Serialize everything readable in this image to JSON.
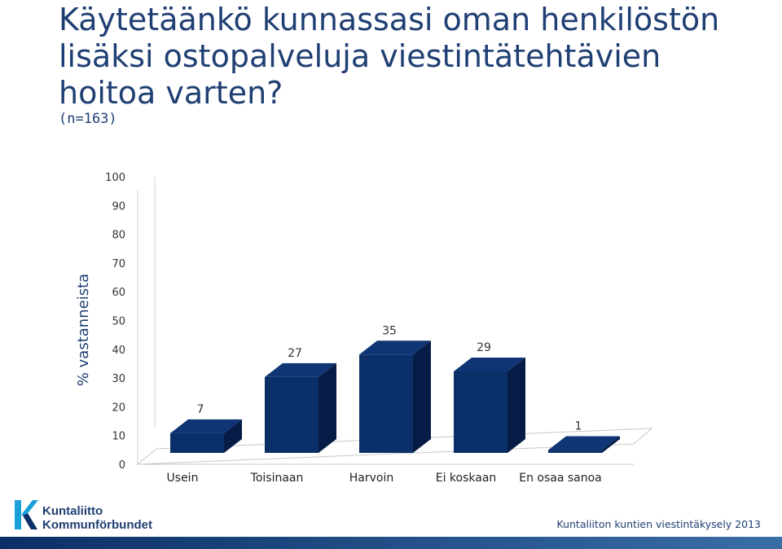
{
  "slide": {
    "title": "Käytetäänkö kunnassasi oman henkilöstön lisäksi ostopalveluja viestintätehtävien hoitoa varten?",
    "subtitle": "(n=163)",
    "footer_source": "Kuntaliiton kuntien viestintäkysely 2013",
    "logo": {
      "line1": "Kuntaliitto",
      "line2": "Kommunförbundet",
      "icon": "k-mark-logo"
    },
    "colors": {
      "title": "#1f3f73",
      "bar_front": "#0b2f68",
      "bar_top": "#0f3575",
      "bar_side": "#061c46",
      "footer_bar_left": "#0b2f68",
      "footer_bar_right": "#3a6fa6"
    }
  },
  "chart_data": {
    "type": "bar",
    "style": "3d-column",
    "categories": [
      "Usein",
      "Toisinaan",
      "Harvoin",
      "Ei koskaan",
      "En osaa sanoa"
    ],
    "values": [
      7,
      27,
      35,
      29,
      1
    ],
    "data_labels": [
      "7",
      "27",
      "35",
      "29",
      "1"
    ],
    "ylabel": "% vastanneista",
    "ylim": [
      0,
      100
    ],
    "yticks": [
      "0",
      "10",
      "20",
      "30",
      "40",
      "50",
      "60",
      "70",
      "80",
      "90",
      "100"
    ],
    "grid": false,
    "legend": "none"
  }
}
